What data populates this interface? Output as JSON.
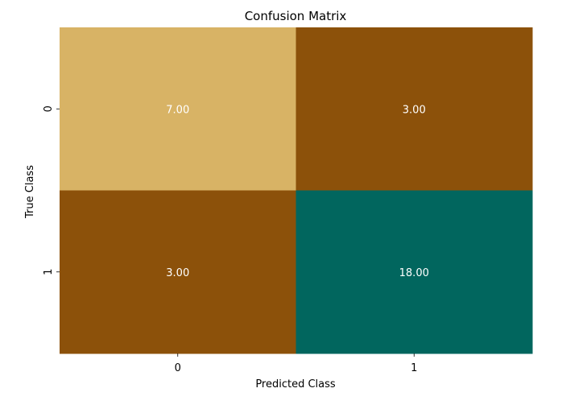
{
  "chart_data": {
    "type": "heatmap",
    "title": "Confusion Matrix",
    "xlabel": "Predicted Class",
    "ylabel": "True Class",
    "x_categories": [
      "0",
      "1"
    ],
    "y_categories": [
      "0",
      "1"
    ],
    "values": [
      [
        7.0,
        3.0
      ],
      [
        3.0,
        18.0
      ]
    ],
    "cell_labels": [
      [
        "7.00",
        "3.00"
      ],
      [
        "3.00",
        "18.00"
      ]
    ],
    "colorbar": false,
    "colors": {
      "low": "#8c510a",
      "mid": "#d8b365",
      "high": "#01665e"
    },
    "label_colors": {
      "on_light": "#262626",
      "on_dark": "#ffffff"
    }
  }
}
